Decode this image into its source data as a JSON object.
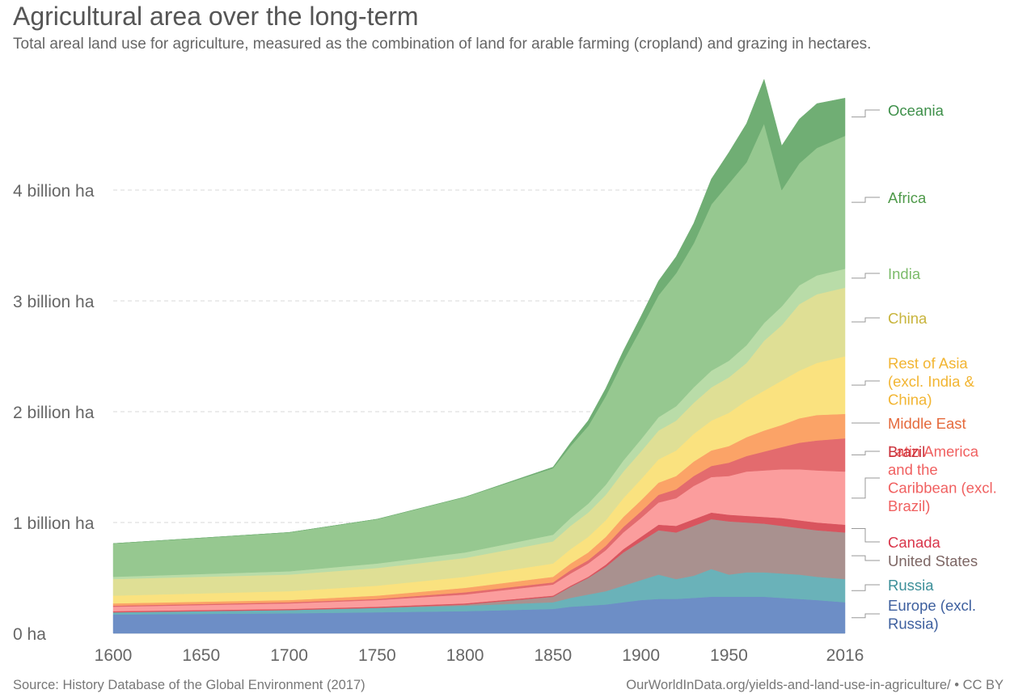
{
  "title": "Agricultural area over the long-term",
  "subtitle": "Total areal land use for agriculture, measured as the combination of land for arable farming (cropland) and grazing in hectares.",
  "source": "Source: History Database of the Global Environment (2017)",
  "credit": "OurWorldInData.org/yields-and-land-use-in-agriculture/ • CC BY",
  "chart_data": {
    "type": "area",
    "stacked": true,
    "title": "Agricultural area over the long-term",
    "unit": "hectares",
    "x": [
      1600,
      1700,
      1750,
      1800,
      1850,
      1860,
      1870,
      1880,
      1890,
      1900,
      1910,
      1920,
      1930,
      1940,
      1950,
      1960,
      1970,
      1980,
      1990,
      2000,
      2016
    ],
    "xticks": [
      1600,
      1650,
      1700,
      1750,
      1800,
      1850,
      1900,
      1950,
      2016
    ],
    "xtick_labels": [
      "1600",
      "1650",
      "1700",
      "1750",
      "1800",
      "1850",
      "1900",
      "1950",
      "2016"
    ],
    "ylim": [
      0,
      4.9
    ],
    "yticks": [
      0,
      1,
      2,
      3,
      4
    ],
    "ytick_labels": [
      "0 ha",
      "1 billion ha",
      "2 billion ha",
      "3 billion ha",
      "4 billion ha"
    ],
    "grid": true,
    "series": [
      {
        "name": "Europe (excl. Russia)",
        "label_lines": [
          "Europe (excl.",
          "Russia)"
        ],
        "color": "#6d8ec6",
        "label_color": "#3d5f9e",
        "values": [
          0.17,
          0.18,
          0.19,
          0.2,
          0.22,
          0.24,
          0.25,
          0.26,
          0.28,
          0.3,
          0.31,
          0.31,
          0.32,
          0.33,
          0.33,
          0.33,
          0.33,
          0.32,
          0.31,
          0.3,
          0.28
        ]
      },
      {
        "name": "Russia",
        "label_lines": [
          "Russia"
        ],
        "color": "#6ab2b9",
        "label_color": "#3c8f99",
        "values": [
          0.02,
          0.03,
          0.04,
          0.05,
          0.06,
          0.08,
          0.1,
          0.12,
          0.15,
          0.18,
          0.22,
          0.18,
          0.2,
          0.25,
          0.2,
          0.22,
          0.22,
          0.22,
          0.22,
          0.21,
          0.21
        ]
      },
      {
        "name": "United States",
        "label_lines": [
          "United States"
        ],
        "color": "#a9918f",
        "label_color": "#7d6664",
        "values": [
          0.0,
          0.0,
          0.0,
          0.01,
          0.05,
          0.1,
          0.15,
          0.22,
          0.3,
          0.35,
          0.4,
          0.42,
          0.45,
          0.45,
          0.48,
          0.45,
          0.44,
          0.43,
          0.42,
          0.42,
          0.42
        ]
      },
      {
        "name": "Canada",
        "label_lines": [
          "Canada"
        ],
        "color": "#d9545e",
        "label_color": "#d9354a",
        "values": [
          0.01,
          0.01,
          0.01,
          0.01,
          0.01,
          0.01,
          0.01,
          0.02,
          0.03,
          0.04,
          0.05,
          0.06,
          0.06,
          0.06,
          0.06,
          0.06,
          0.06,
          0.07,
          0.07,
          0.07,
          0.07
        ]
      },
      {
        "name": "Latin America and the Caribbean (excl. Brazil)",
        "label_lines": [
          "Latin America",
          "and the",
          "Caribbean (excl.",
          "Brazil)"
        ],
        "color": "#fb9d9d",
        "label_color": "#f06060",
        "values": [
          0.04,
          0.05,
          0.06,
          0.08,
          0.1,
          0.11,
          0.12,
          0.13,
          0.15,
          0.17,
          0.2,
          0.25,
          0.3,
          0.32,
          0.35,
          0.4,
          0.42,
          0.44,
          0.46,
          0.47,
          0.48
        ]
      },
      {
        "name": "Brazil",
        "label_lines": [
          "Brazil"
        ],
        "color": "#e36b6e",
        "label_color": "#c9303a",
        "values": [
          0.01,
          0.01,
          0.01,
          0.02,
          0.02,
          0.03,
          0.03,
          0.04,
          0.05,
          0.06,
          0.07,
          0.08,
          0.09,
          0.1,
          0.12,
          0.14,
          0.17,
          0.2,
          0.24,
          0.27,
          0.3
        ]
      },
      {
        "name": "Middle East",
        "label_lines": [
          "Middle East"
        ],
        "color": "#fba367",
        "label_color": "#e56a3c",
        "values": [
          0.02,
          0.02,
          0.03,
          0.04,
          0.05,
          0.06,
          0.07,
          0.08,
          0.09,
          0.1,
          0.11,
          0.12,
          0.13,
          0.14,
          0.15,
          0.17,
          0.19,
          0.2,
          0.22,
          0.23,
          0.22
        ]
      },
      {
        "name": "Rest of Asia (excl. India & China)",
        "label_lines": [
          "Rest of Asia",
          "(excl. India &",
          "China)"
        ],
        "color": "#fae27f",
        "label_color": "#f2b532",
        "values": [
          0.07,
          0.08,
          0.09,
          0.1,
          0.12,
          0.13,
          0.14,
          0.15,
          0.17,
          0.19,
          0.21,
          0.23,
          0.25,
          0.27,
          0.3,
          0.33,
          0.36,
          0.4,
          0.43,
          0.47,
          0.52
        ]
      },
      {
        "name": "China",
        "label_lines": [
          "China"
        ],
        "color": "#dfdf95",
        "label_color": "#c8b43c",
        "values": [
          0.15,
          0.15,
          0.16,
          0.17,
          0.2,
          0.21,
          0.22,
          0.23,
          0.24,
          0.25,
          0.26,
          0.27,
          0.28,
          0.3,
          0.32,
          0.34,
          0.45,
          0.5,
          0.6,
          0.62,
          0.62
        ]
      },
      {
        "name": "India",
        "label_lines": [
          "India"
        ],
        "color": "#b9dca8",
        "label_color": "#7cbb6a",
        "values": [
          0.02,
          0.03,
          0.04,
          0.05,
          0.06,
          0.07,
          0.08,
          0.09,
          0.1,
          0.11,
          0.12,
          0.13,
          0.14,
          0.15,
          0.15,
          0.16,
          0.16,
          0.17,
          0.17,
          0.17,
          0.17
        ]
      },
      {
        "name": "Africa",
        "label_lines": [
          "Africa"
        ],
        "color": "#96c890",
        "label_color": "#4f9a4a",
        "values": [
          0.3,
          0.35,
          0.4,
          0.5,
          0.6,
          0.65,
          0.7,
          0.8,
          0.9,
          1.0,
          1.1,
          1.2,
          1.3,
          1.5,
          1.6,
          1.65,
          1.8,
          1.05,
          1.1,
          1.15,
          1.2
        ]
      },
      {
        "name": "Oceania",
        "label_lines": [
          "Oceania"
        ],
        "color": "#70ae74",
        "label_color": "#3d8f49",
        "values": [
          0.0,
          0.0,
          0.0,
          0.0,
          0.01,
          0.03,
          0.05,
          0.07,
          0.09,
          0.11,
          0.13,
          0.15,
          0.18,
          0.23,
          0.28,
          0.35,
          0.4,
          0.4,
          0.4,
          0.4,
          0.34
        ]
      }
    ]
  }
}
